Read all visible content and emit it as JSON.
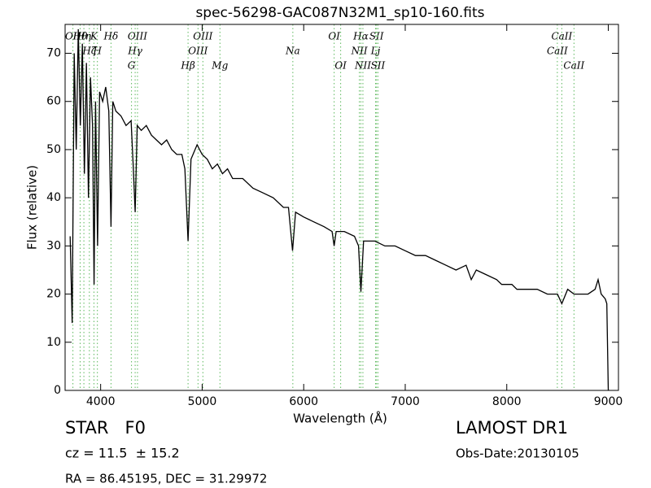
{
  "chart_data": {
    "type": "line",
    "title": "spec-56298-GAC087N32M1_sp10-160.fits",
    "x_label": "Wavelength (Å)",
    "y_label": "Flux (relative)",
    "color": "#000000",
    "line_color": "#5cb85c",
    "xlim": [
      3650,
      9100
    ],
    "ylim": [
      0,
      76
    ],
    "xticks": [
      4000,
      5000,
      6000,
      7000,
      8000,
      9000
    ],
    "yticks": [
      0,
      10,
      20,
      30,
      40,
      50,
      60,
      70
    ],
    "x": [
      3700,
      3720,
      3740,
      3760,
      3780,
      3800,
      3820,
      3840,
      3860,
      3880,
      3900,
      3920,
      3935,
      3950,
      3970,
      3990,
      4020,
      4050,
      4080,
      4102,
      4120,
      4150,
      4200,
      4250,
      4300,
      4320,
      4340,
      4360,
      4400,
      4450,
      4500,
      4550,
      4600,
      4650,
      4700,
      4750,
      4800,
      4830,
      4861,
      4890,
      4950,
      5000,
      5050,
      5100,
      5150,
      5200,
      5250,
      5300,
      5400,
      5500,
      5600,
      5700,
      5800,
      5850,
      5890,
      5920,
      6000,
      6100,
      6200,
      6280,
      6300,
      6320,
      6400,
      6500,
      6540,
      6563,
      6590,
      6700,
      6800,
      6900,
      7000,
      7100,
      7200,
      7300,
      7400,
      7500,
      7600,
      7650,
      7700,
      7800,
      7900,
      7950,
      8000,
      8050,
      8100,
      8200,
      8300,
      8400,
      8500,
      8542,
      8600,
      8662,
      8800,
      8870,
      8900,
      8930,
      8970,
      8985,
      9000,
      9010
    ],
    "values": [
      32,
      14,
      70,
      50,
      75,
      55,
      72,
      45,
      68,
      40,
      65,
      55,
      22,
      60,
      30,
      62,
      60,
      63,
      58,
      34,
      60,
      58,
      57,
      55,
      56,
      47,
      37,
      55,
      54,
      55,
      53,
      52,
      51,
      52,
      50,
      49,
      49,
      46,
      31,
      48,
      51,
      49,
      48,
      46,
      47,
      45,
      46,
      44,
      44,
      42,
      41,
      40,
      38,
      38,
      29,
      37,
      36,
      35,
      34,
      33,
      30,
      33,
      33,
      32,
      30,
      20.5,
      31,
      31,
      30,
      30,
      29,
      28,
      28,
      27,
      26,
      25,
      26,
      23,
      25,
      24,
      23,
      22,
      22,
      22,
      21,
      21,
      21,
      20,
      20,
      18,
      21,
      20,
      20,
      21,
      23,
      20,
      19,
      18,
      0,
      0
    ],
    "lines": [
      {
        "label": "OII",
        "wavelength": 3727
      },
      {
        "label": "Hθ",
        "wavelength": 3798
      },
      {
        "label": "K",
        "wavelength": 3934
      },
      {
        "label": "Hη",
        "wavelength": 3835
      },
      {
        "label": "Hζ",
        "wavelength": 3889
      },
      {
        "label": "H",
        "wavelength": 3968
      },
      {
        "label": "Hδ",
        "wavelength": 4102
      },
      {
        "label": "OIII",
        "wavelength": 4363
      },
      {
        "label": "Hγ",
        "wavelength": 4340
      },
      {
        "label": "G",
        "wavelength": 4304
      },
      {
        "label": "OIII",
        "wavelength": 5007
      },
      {
        "label": "OIII",
        "wavelength": 4959
      },
      {
        "label": "Hβ",
        "wavelength": 4861
      },
      {
        "label": "Mg",
        "wavelength": 5175
      },
      {
        "label": "Na",
        "wavelength": 5893
      },
      {
        "label": "OI",
        "wavelength": 6300
      },
      {
        "label": "OI",
        "wavelength": 6364
      },
      {
        "label": "Hα",
        "wavelength": 6563
      },
      {
        "label": "NII",
        "wavelength": 6548
      },
      {
        "label": "NII",
        "wavelength": 6583
      },
      {
        "label": "SII",
        "wavelength": 6717
      },
      {
        "label": "Lj",
        "wavelength": 6708
      },
      {
        "label": "SII",
        "wavelength": 6731
      },
      {
        "label": "CaII",
        "wavelength": 8542
      },
      {
        "label": "CaII",
        "wavelength": 8498
      },
      {
        "label": "CaII",
        "wavelength": 8662
      }
    ]
  },
  "footer": {
    "class": "STAR   F0",
    "cz": "cz = 11.5  ± 15.2",
    "coords": "RA = 86.45195, DEC = 31.29972",
    "release": "LAMOST DR1",
    "obs_date": "Obs-Date:20130105"
  }
}
